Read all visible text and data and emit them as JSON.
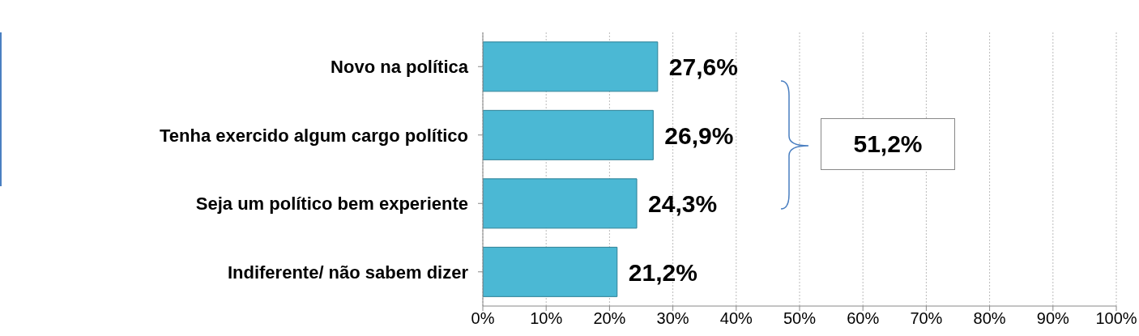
{
  "chart_data": {
    "type": "bar",
    "orientation": "horizontal",
    "categories": [
      "Novo na política",
      "Tenha exercido algum cargo político",
      "Seja um político bem experiente",
      "Indiferente/ não sabem dizer"
    ],
    "values": [
      27.6,
      26.9,
      24.3,
      21.2
    ],
    "value_labels": [
      "27,6%",
      "26,9%",
      "24,3%",
      "21,2%"
    ],
    "color": "#4bb8d4",
    "xlim": [
      0,
      100
    ],
    "xticks": [
      {
        "value": 0,
        "label": "0%"
      },
      {
        "value": 10,
        "label": "10%"
      },
      {
        "value": 20,
        "label": "20%"
      },
      {
        "value": 30,
        "label": "30%"
      },
      {
        "value": 40,
        "label": "40%"
      },
      {
        "value": 50,
        "label": "50%"
      },
      {
        "value": 60,
        "label": "60%"
      },
      {
        "value": 70,
        "label": "70%"
      },
      {
        "value": 80,
        "label": "80%"
      },
      {
        "value": 90,
        "label": "90%"
      },
      {
        "value": 100,
        "label": "100%"
      }
    ],
    "grid": "x",
    "annotations": [
      "51,2%"
    ]
  }
}
